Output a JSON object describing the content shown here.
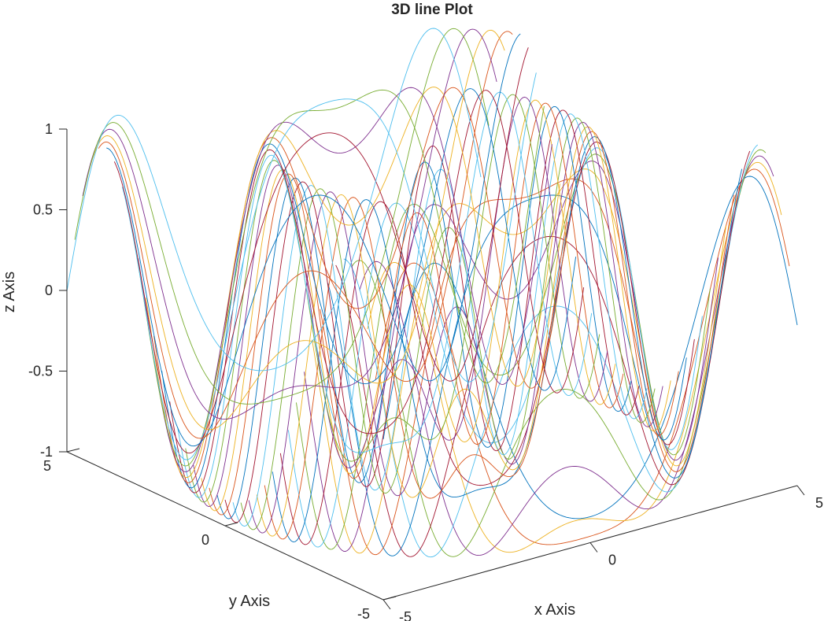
{
  "chart_data": {
    "type": "line",
    "subtype": "3d-line",
    "title": "3D line Plot",
    "xlabel": "x Axis",
    "ylabel": "y Axis",
    "zlabel": "z Axis",
    "xlim": [
      -5,
      5
    ],
    "ylim": [
      -5,
      5
    ],
    "zlim": [
      -1,
      1
    ],
    "xticks": [
      {
        "value": -5,
        "label": "-5"
      },
      {
        "value": 0,
        "label": "0"
      },
      {
        "value": 5,
        "label": "5"
      }
    ],
    "yticks": [
      {
        "value": -5,
        "label": "-5"
      },
      {
        "value": 0,
        "label": "0"
      },
      {
        "value": 5,
        "label": "5"
      }
    ],
    "zticks": [
      {
        "value": -1,
        "label": "-1"
      },
      {
        "value": -0.5,
        "label": "-0.5"
      },
      {
        "value": 0,
        "label": "0"
      },
      {
        "value": 0.5,
        "label": "0.5"
      },
      {
        "value": 1,
        "label": "1"
      }
    ],
    "grid": false,
    "series_count": 41,
    "series_x": [
      -5,
      5
    ],
    "series_y_values": [
      -5,
      -4.75,
      -4.5,
      -4.25,
      -4,
      -3.75,
      -3.5,
      -3.25,
      -3,
      -2.75,
      -2.5,
      -2.25,
      -2,
      -1.75,
      -1.5,
      -1.25,
      -1,
      -0.75,
      -0.5,
      -0.25,
      0,
      0.25,
      0.5,
      0.75,
      1,
      1.25,
      1.5,
      1.75,
      2,
      2.25,
      2.5,
      2.75,
      3,
      3.25,
      3.5,
      3.75,
      4,
      4.25,
      4.5,
      4.75,
      5
    ],
    "surface": "z = cos(2*sqrt(x^2 + y^2))",
    "colors": [
      "#0072BD",
      "#D95319",
      "#EDB120",
      "#7E2F8E",
      "#77AC30",
      "#4DBEEE",
      "#A2142F"
    ]
  }
}
